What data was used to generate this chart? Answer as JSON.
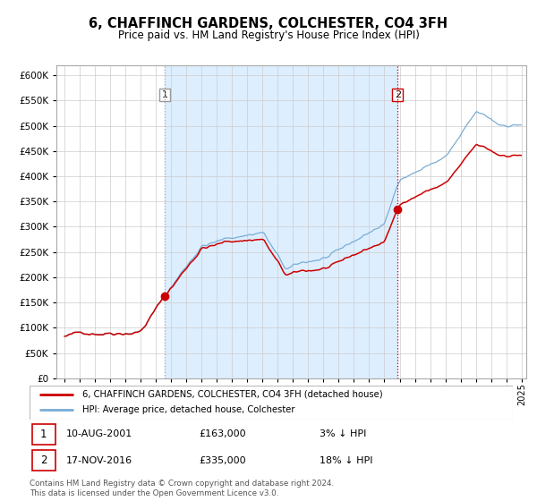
{
  "title": "6, CHAFFINCH GARDENS, COLCHESTER, CO4 3FH",
  "subtitle": "Price paid vs. HM Land Registry's House Price Index (HPI)",
  "legend_line1": "6, CHAFFINCH GARDENS, COLCHESTER, CO4 3FH (detached house)",
  "legend_line2": "HPI: Average price, detached house, Colchester",
  "sale1_date": "10-AUG-2001",
  "sale1_price": 163000,
  "sale1_pct": "3%",
  "sale2_date": "17-NOV-2016",
  "sale2_price": 335000,
  "sale2_pct": "18%",
  "sale1_year": 2001.61,
  "sale2_year": 2016.88,
  "footer1": "Contains HM Land Registry data © Crown copyright and database right 2024.",
  "footer2": "This data is licensed under the Open Government Licence v3.0.",
  "hpi_color": "#7aadd4",
  "price_color": "#cc0000",
  "bg_shaded_color": "#ddeeff",
  "vline1_color": "#aaaaaa",
  "vline2_color": "#cc0000",
  "ylim_max": 620000,
  "ylim_min": 0,
  "xlim_min": 1994.5,
  "xlim_max": 2025.3
}
